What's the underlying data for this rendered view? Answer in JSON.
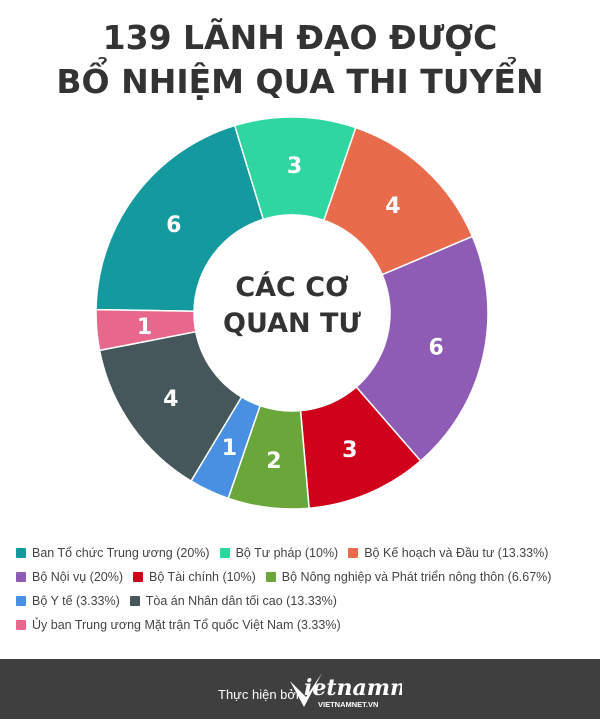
{
  "title_line1": "139 LÃNH ĐẠO ĐƯỢC",
  "title_line2": "BỔ NHIỆM QUA THI TUYỂN",
  "center_line1": "CÁC CƠ",
  "center_line2": "QUAN TƯ",
  "chart_data": {
    "type": "pie",
    "donut": true,
    "slices": [
      {
        "name": "Ban Tổ chức Trung ương",
        "value": 6,
        "percent_label": "(20%)",
        "color": "#14999e"
      },
      {
        "name": "Bộ Tư pháp",
        "value": 3,
        "percent_label": "(10%)",
        "color": "#2fd6a0"
      },
      {
        "name": "Bộ Kế hoạch và Đầu tư",
        "value": 4,
        "percent_label": "(13.33%)",
        "color": "#e86b4b"
      },
      {
        "name": "Bộ Nội vụ",
        "value": 6,
        "percent_label": "(20%)",
        "color": "#8e5bb5"
      },
      {
        "name": "Bộ Tài chính",
        "value": 3,
        "percent_label": "(10%)",
        "color": "#d0021b"
      },
      {
        "name": "Bộ Nông nghiệp và Phát triển nông thôn",
        "value": 2,
        "percent_label": "(6.67%)",
        "color": "#6aa63a"
      },
      {
        "name": "Bộ Y tế",
        "value": 1,
        "percent_label": "(3.33%)",
        "color": "#4a90e2"
      },
      {
        "name": "Tòa án Nhân dân tối cao",
        "value": 4,
        "percent_label": "(13.33%)",
        "color": "#45575a"
      },
      {
        "name": "Ủy ban Trung ương Mặt trận Tổ quốc Việt Nam",
        "value": 1,
        "percent_label": "(3.33%)",
        "color": "#e8678c"
      }
    ],
    "legend_position": "bottom"
  },
  "footer": {
    "credit": "Thực hiện bởi",
    "logo_text": "vietnamnet",
    "logo_sub": "VIETNAMNET.VN"
  }
}
